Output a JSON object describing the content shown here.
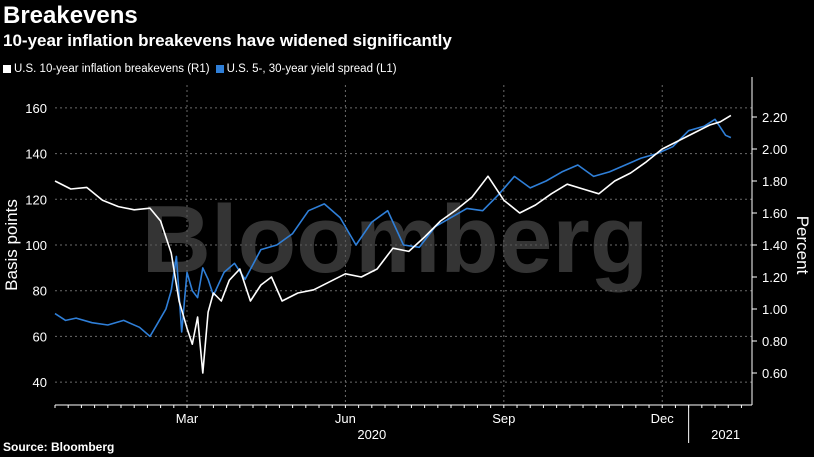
{
  "header": {
    "title": "Breakevens",
    "subtitle": "10-year inflation breakevens have widened significantly"
  },
  "legend": {
    "items": [
      {
        "label": "U.S. 10-year inflation breakevens (R1)",
        "color": "#ffffff"
      },
      {
        "label": "U.S. 5-, 30-year yield spread (L1)",
        "color": "#2f7fd8"
      }
    ]
  },
  "watermark": "Bloomberg",
  "source": "Source: Bloomberg",
  "chart_data": {
    "type": "line",
    "title": "10-year inflation breakevens have widened significantly",
    "ylabel_left": "Basis points",
    "ylabel_right": "Percent",
    "ylim_left": [
      30,
      170
    ],
    "ylim_right": [
      0.4,
      2.4
    ],
    "left_ticks": [
      40,
      60,
      80,
      100,
      120,
      140,
      160
    ],
    "right_ticks": [
      "0.60",
      "0.80",
      "1.00",
      "1.20",
      "1.40",
      "1.60",
      "1.80",
      "2.00",
      "2.20"
    ],
    "right_tick_values": [
      0.6,
      0.8,
      1.0,
      1.2,
      1.4,
      1.6,
      1.8,
      2.0,
      2.2
    ],
    "x_range": [
      0,
      13.2
    ],
    "month_ticks": [
      "Mar",
      "Jun",
      "Sep",
      "Dec"
    ],
    "month_tick_positions": [
      2.5,
      5.5,
      8.5,
      11.5
    ],
    "year_labels": [
      "2020",
      "2021"
    ],
    "year_label_positions": [
      6.0,
      12.7
    ],
    "year_divider": 12.0,
    "grid": true,
    "series": [
      {
        "name": "U.S. 10-year inflation breakevens (R1)",
        "axis": "right",
        "color": "#ffffff",
        "x": [
          0,
          0.3,
          0.6,
          0.9,
          1.2,
          1.5,
          1.8,
          2.0,
          2.2,
          2.35,
          2.5,
          2.6,
          2.7,
          2.8,
          2.9,
          3.0,
          3.15,
          3.3,
          3.5,
          3.7,
          3.9,
          4.1,
          4.3,
          4.6,
          4.9,
          5.2,
          5.5,
          5.8,
          6.1,
          6.4,
          6.7,
          7.0,
          7.3,
          7.6,
          7.9,
          8.2,
          8.5,
          8.8,
          9.1,
          9.4,
          9.7,
          10.0,
          10.3,
          10.6,
          10.9,
          11.2,
          11.5,
          11.8,
          12.1,
          12.4,
          12.6,
          12.8
        ],
        "values": [
          1.8,
          1.75,
          1.76,
          1.68,
          1.64,
          1.62,
          1.63,
          1.55,
          1.35,
          1.05,
          0.88,
          0.78,
          0.95,
          0.6,
          0.98,
          1.1,
          1.05,
          1.18,
          1.25,
          1.05,
          1.15,
          1.2,
          1.05,
          1.1,
          1.12,
          1.17,
          1.22,
          1.2,
          1.25,
          1.38,
          1.36,
          1.45,
          1.55,
          1.62,
          1.7,
          1.83,
          1.68,
          1.6,
          1.65,
          1.72,
          1.78,
          1.75,
          1.72,
          1.8,
          1.85,
          1.92,
          2.0,
          2.05,
          2.1,
          2.15,
          2.17,
          2.21
        ]
      },
      {
        "name": "U.S. 5-, 30-year yield spread (L1)",
        "axis": "left",
        "color": "#2f7fd8",
        "x": [
          0,
          0.2,
          0.4,
          0.7,
          1.0,
          1.3,
          1.6,
          1.8,
          1.95,
          2.1,
          2.2,
          2.3,
          2.4,
          2.5,
          2.6,
          2.7,
          2.8,
          2.9,
          3.0,
          3.2,
          3.4,
          3.6,
          3.9,
          4.2,
          4.5,
          4.8,
          5.1,
          5.4,
          5.7,
          6.0,
          6.3,
          6.6,
          6.9,
          7.2,
          7.5,
          7.8,
          8.1,
          8.4,
          8.7,
          9.0,
          9.3,
          9.6,
          9.9,
          10.2,
          10.5,
          10.8,
          11.1,
          11.4,
          11.7,
          12.0,
          12.3,
          12.5,
          12.7,
          12.8
        ],
        "values": [
          70,
          67,
          68,
          66,
          65,
          67,
          64,
          60,
          66,
          72,
          80,
          95,
          62,
          88,
          80,
          77,
          90,
          85,
          78,
          88,
          92,
          85,
          98,
          100,
          105,
          115,
          118,
          112,
          100,
          110,
          115,
          100,
          99,
          108,
          112,
          116,
          115,
          122,
          130,
          125,
          128,
          132,
          135,
          130,
          132,
          135,
          138,
          140,
          143,
          150,
          152,
          155,
          148,
          147
        ]
      }
    ]
  }
}
